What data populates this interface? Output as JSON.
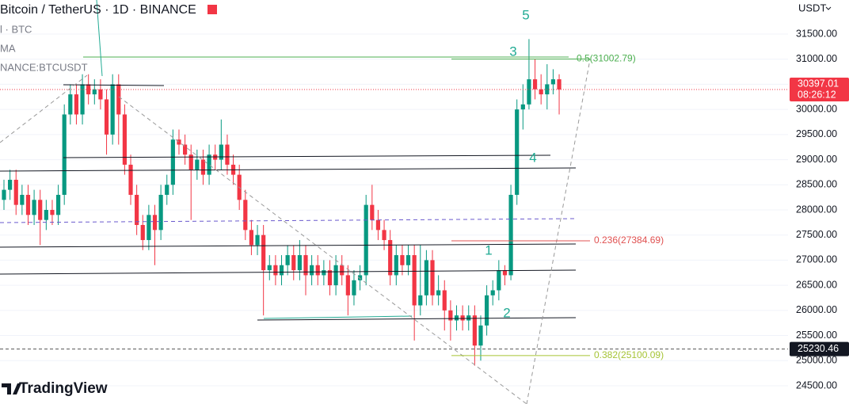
{
  "chart_data": {
    "type": "candlestick",
    "title": "Bitcoin / TetherUS · 1D · BINANCE",
    "legend_items": [
      "l · BTC",
      "MA",
      "NANCE:BTCUSDT"
    ],
    "currency": "USDT",
    "countdown": "08:26:12",
    "watermark": "TradingView",
    "up_color": "#089981",
    "down_color": "#f23645",
    "grid": true,
    "ylim": [
      24137,
      32178
    ],
    "yticks": [
      {
        "value": 24500,
        "label": "24500.00"
      },
      {
        "value": 25000,
        "label": "25000.00"
      },
      {
        "value": 25500,
        "label": "25500.00"
      },
      {
        "value": 26000,
        "label": "26000.00"
      },
      {
        "value": 26500,
        "label": "26500.00"
      },
      {
        "value": 27000,
        "label": "27000.00"
      },
      {
        "value": 27500,
        "label": "27500.00"
      },
      {
        "value": 28000,
        "label": "28000.00"
      },
      {
        "value": 28500,
        "label": "28500.00"
      },
      {
        "value": 29000,
        "label": "29000.00"
      },
      {
        "value": 29500,
        "label": "29500.00"
      },
      {
        "value": 30000,
        "label": "30000.00"
      },
      {
        "value": 30500,
        "label": "30500.00"
      },
      {
        "value": 31000,
        "label": "31000.00"
      },
      {
        "value": 31500,
        "label": "31500.00"
      }
    ],
    "open": [
      28200,
      28400,
      28600,
      28100,
      28300,
      27900,
      28200,
      27800,
      28000,
      27900,
      28300,
      29900,
      30300,
      29900,
      30500,
      30300,
      30400,
      30200,
      29500,
      30500,
      29900,
      28900,
      28300,
      27700,
      27400,
      27900,
      27600,
      28300,
      28500,
      29400,
      29300,
      29100,
      28800,
      29000,
      28700,
      29100,
      29000,
      29300,
      28900,
      28700,
      28200,
      27600,
      27300,
      27500,
      26800,
      26900,
      26700,
      26900,
      27100,
      26800,
      27100,
      26700,
      26900,
      26700,
      26800,
      26500,
      26900,
      26700,
      26300,
      26600,
      26700,
      28100,
      27800,
      27600,
      27400,
      26700,
      27100,
      26900,
      27100,
      26100,
      26300,
      27000,
      26300,
      26400,
      26000,
      25800,
      25900,
      25800,
      25900,
      25300,
      25700,
      26300,
      26400,
      26800,
      26700,
      28300,
      30000,
      30100,
      30600,
      30400,
      30300,
      30500,
      30600
    ],
    "high": [
      28600,
      28800,
      28800,
      28500,
      28500,
      28400,
      28400,
      28200,
      28200,
      28500,
      30100,
      30500,
      30500,
      30700,
      30700,
      30600,
      30600,
      30400,
      30700,
      30700,
      30100,
      29100,
      28500,
      27900,
      28100,
      28100,
      28500,
      28700,
      29600,
      29600,
      29500,
      29300,
      29200,
      29200,
      29300,
      29300,
      29800,
      29500,
      29100,
      28900,
      28400,
      27800,
      27700,
      27700,
      27100,
      27100,
      27100,
      27300,
      27300,
      27400,
      27300,
      27100,
      27100,
      27000,
      27000,
      27100,
      27100,
      26900,
      26800,
      26900,
      28300,
      28500,
      28000,
      27800,
      27600,
      27300,
      27300,
      27300,
      27300,
      27300,
      27200,
      27200,
      26700,
      26600,
      26200,
      26100,
      26100,
      26100,
      26100,
      25900,
      26500,
      26600,
      27000,
      26900,
      28500,
      30200,
      30500,
      31400,
      31000,
      30700,
      30900,
      30800,
      30700
    ],
    "low": [
      28000,
      28200,
      27900,
      27900,
      27700,
      27700,
      27300,
      27600,
      27700,
      27700,
      28100,
      29700,
      29700,
      29700,
      30100,
      30100,
      30000,
      29100,
      29300,
      29300,
      28700,
      28100,
      27500,
      27200,
      27200,
      26900,
      27400,
      28100,
      28300,
      29100,
      28900,
      27800,
      28600,
      28500,
      28500,
      28800,
      28800,
      28700,
      28500,
      28000,
      27400,
      27100,
      27100,
      25900,
      26600,
      26500,
      26500,
      26700,
      26600,
      26600,
      26300,
      26500,
      26500,
      26500,
      26300,
      26300,
      26500,
      25900,
      26100,
      26400,
      26500,
      27600,
      27400,
      27200,
      26500,
      26500,
      26700,
      26700,
      25400,
      25900,
      26100,
      26100,
      26100,
      25600,
      25400,
      25600,
      25600,
      25600,
      24900,
      25000,
      25500,
      26100,
      26200,
      26500,
      26600,
      28100,
      29600,
      30000,
      30200,
      30100,
      30000,
      30300,
      29900
    ],
    "close": [
      28400,
      28600,
      28100,
      28300,
      27900,
      28200,
      27800,
      28000,
      27900,
      28300,
      29900,
      30300,
      29900,
      30500,
      30300,
      30400,
      30200,
      29500,
      30500,
      29900,
      28900,
      28300,
      27700,
      27400,
      27900,
      27600,
      28300,
      28500,
      29400,
      29300,
      29100,
      28800,
      29000,
      28700,
      29100,
      29000,
      29300,
      28900,
      28700,
      28200,
      27600,
      27300,
      27500,
      26800,
      26900,
      26700,
      26900,
      27100,
      26800,
      27100,
      26700,
      26900,
      26700,
      26800,
      26500,
      26900,
      26700,
      26300,
      26600,
      26700,
      28100,
      27800,
      27600,
      27400,
      26700,
      27100,
      26900,
      27100,
      26100,
      26300,
      27000,
      26300,
      26400,
      26000,
      25800,
      25900,
      25800,
      25900,
      25300,
      25700,
      26300,
      26400,
      26800,
      26700,
      28300,
      30000,
      30100,
      30600,
      30400,
      30300,
      30500,
      30600,
      30397.01
    ],
    "marker_price": 25230.46,
    "fib_levels": [
      {
        "value": 31002.79,
        "label": "0.5(31002.79)",
        "color": "#4caf50"
      },
      {
        "value": 27384.69,
        "label": "0.236(27384.69)",
        "color": "#e05050"
      },
      {
        "value": 25100.09,
        "label": "0.382(25100.09)",
        "color": "#a6c435"
      }
    ],
    "wave_labels": [
      "1",
      "2",
      "3",
      "4",
      "5"
    ]
  }
}
